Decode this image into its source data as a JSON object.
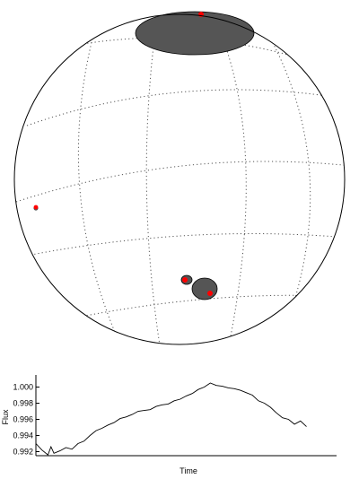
{
  "colors": {
    "outline": "#000000",
    "grid": "#555555",
    "spot_fill": "#555555",
    "marker": "#ff0000",
    "curve": "#000000"
  },
  "globe": {
    "grid": "dotted",
    "spots": [
      {
        "id": "spot-1",
        "has_marker": true
      },
      {
        "id": "spot-2",
        "has_marker": true
      },
      {
        "id": "spot-3",
        "has_marker": true
      },
      {
        "id": "spot-4",
        "has_marker": true
      }
    ]
  },
  "chart_data": {
    "type": "line",
    "title": "",
    "xlabel": "Time",
    "ylabel": "Flux",
    "x_ticks_labeled": false,
    "ylim": [
      0.9915,
      1.0015
    ],
    "y_ticks": [
      0.992,
      0.994,
      0.996,
      0.998,
      1.0
    ],
    "y_tick_labels": [
      "0.992",
      "0.994",
      "0.996",
      "0.998",
      "1.000"
    ],
    "series": [
      {
        "x": [
          0.0,
          0.02,
          0.04,
          0.05,
          0.06,
          0.08,
          0.1,
          0.12,
          0.14,
          0.16,
          0.18,
          0.2,
          0.22,
          0.24,
          0.26,
          0.28,
          0.3,
          0.32,
          0.34,
          0.36,
          0.38,
          0.4,
          0.42,
          0.44,
          0.46,
          0.48,
          0.5,
          0.52,
          0.54,
          0.56,
          0.58,
          0.6,
          0.62,
          0.64,
          0.66,
          0.68,
          0.7,
          0.72,
          0.74,
          0.76,
          0.78,
          0.8,
          0.82,
          0.84,
          0.86,
          0.88,
          0.9
        ],
        "y": [
          0.993,
          0.9922,
          0.9916,
          0.9926,
          0.9918,
          0.9921,
          0.9925,
          0.9923,
          0.993,
          0.9933,
          0.994,
          0.9946,
          0.9949,
          0.9953,
          0.9956,
          0.9961,
          0.9963,
          0.9966,
          0.997,
          0.9971,
          0.9972,
          0.9976,
          0.9978,
          0.9979,
          0.9983,
          0.9985,
          0.9989,
          0.9992,
          0.9997,
          1.0,
          1.0005,
          1.0002,
          1.0001,
          0.9999,
          0.9998,
          0.9996,
          0.9993,
          0.999,
          0.9983,
          0.998,
          0.9975,
          0.9968,
          0.9962,
          0.996,
          0.9954,
          0.9958,
          0.9951
        ]
      }
    ]
  }
}
